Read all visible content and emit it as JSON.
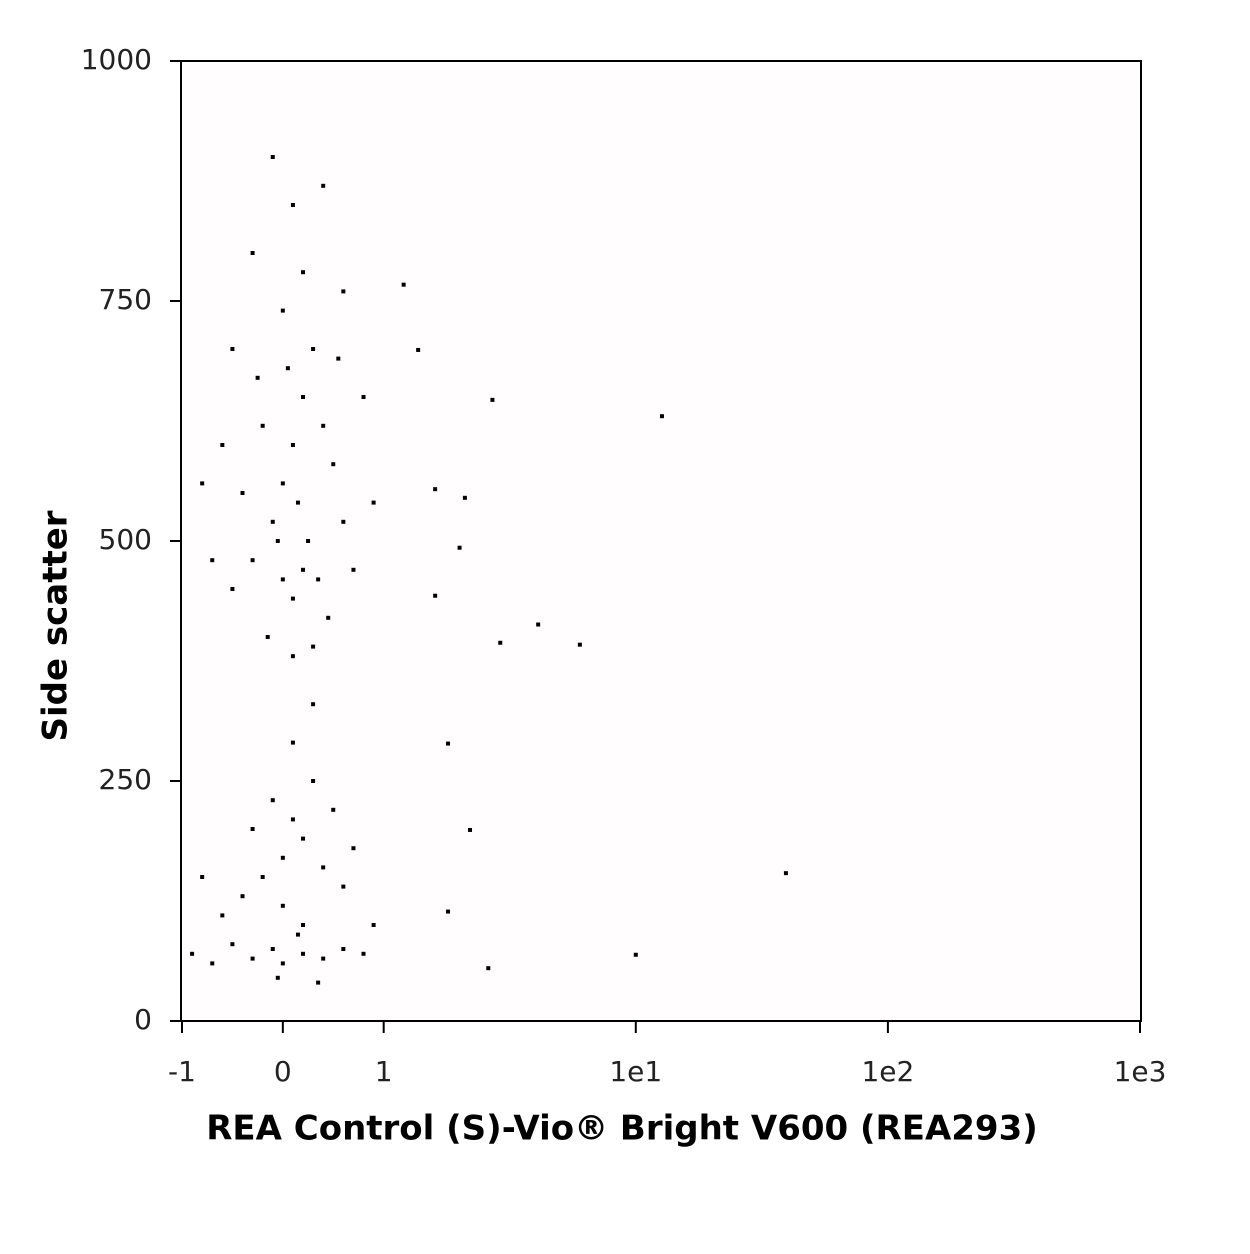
{
  "chart_data": {
    "type": "scatter",
    "x_label": "REA Control (S)-Vio® Bright V600 (REA293)",
    "y_label": "Side scatter",
    "color": "#000000",
    "xscale": "biexponential",
    "xlim": [
      -1,
      1000
    ],
    "ylim": [
      0,
      1000
    ],
    "xticks": [
      -1,
      0,
      1,
      {
        "value": 10,
        "label": "1e1"
      },
      {
        "value": 100,
        "label": "1e2"
      },
      {
        "value": 1000,
        "label": "1e3"
      }
    ],
    "yticks": [
      0,
      250,
      500,
      750,
      1000
    ],
    "x": [
      -0.5,
      -0.3,
      -0.1,
      0,
      0.1,
      0.2,
      0.3,
      -0.2,
      0.05,
      0.15,
      0.25,
      0.35,
      0.45,
      -0.4,
      -0.6,
      -0.7,
      0.5,
      0.6,
      0.7,
      -0.15,
      0.1,
      0.3,
      0,
      0.2,
      -0.3,
      0.1,
      0.4,
      -0.1,
      0.6,
      -0.5,
      0.8,
      -0.8,
      0,
      0.1,
      -0.05,
      0.2,
      0.4,
      -0.25,
      0.55,
      0.9,
      -0.9,
      -0.7,
      -0.5,
      -0.3,
      -0.1,
      0,
      0.2,
      0.4,
      0.6,
      0.8,
      -0.6,
      -0.4,
      -0.2,
      0,
      0.2,
      0.4,
      0.6,
      0.1,
      -0.1,
      0.3,
      0,
      0.2,
      -0.3,
      0.5,
      -0.8,
      0.7,
      0.15,
      -0.05,
      0.35,
      0.9,
      0.1,
      0.3,
      12.7,
      39.4,
      10,
      2.7,
      6.0,
      4.1,
      2.9,
      1.8,
      2.2,
      1.8,
      2.6,
      2.1,
      1.6,
      2.0,
      1.6,
      1.37,
      1.2
    ],
    "y": [
      450,
      480,
      520,
      560,
      600,
      650,
      700,
      620,
      680,
      540,
      500,
      460,
      420,
      550,
      600,
      480,
      580,
      520,
      470,
      400,
      380,
      390,
      740,
      780,
      800,
      850,
      870,
      900,
      760,
      700,
      650,
      560,
      460,
      440,
      500,
      470,
      620,
      670,
      690,
      540,
      70,
      60,
      80,
      65,
      75,
      60,
      70,
      65,
      75,
      70,
      110,
      130,
      150,
      170,
      190,
      160,
      140,
      210,
      230,
      250,
      120,
      100,
      200,
      220,
      150,
      180,
      90,
      45,
      40,
      100,
      290,
      330,
      630,
      154,
      69,
      647,
      392,
      413,
      394,
      289,
      199,
      114,
      55,
      545,
      554,
      493,
      443,
      699,
      767
    ]
  }
}
